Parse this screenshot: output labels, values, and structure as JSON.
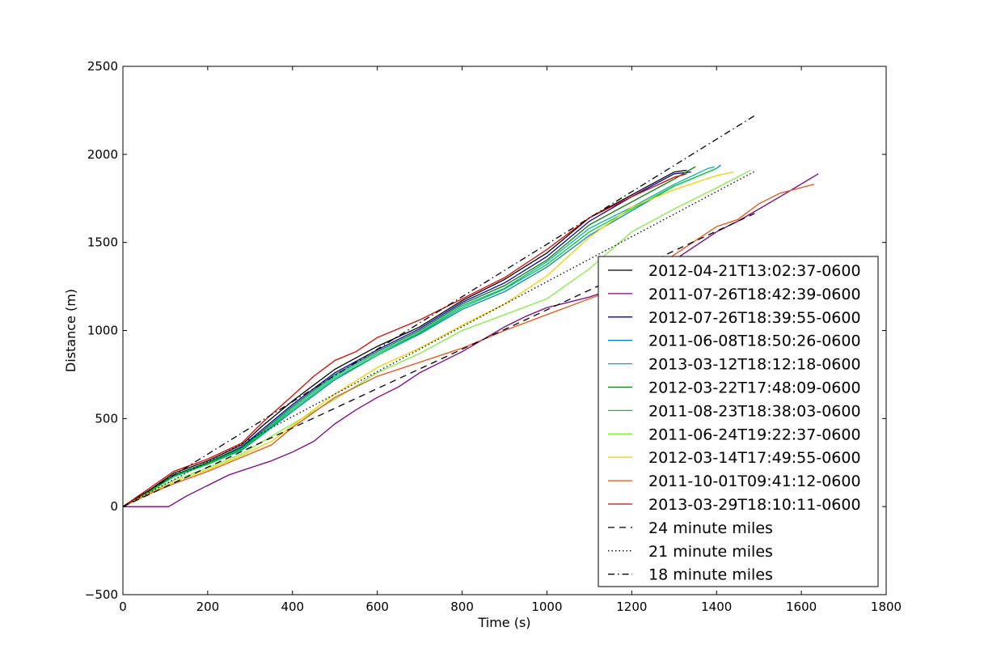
{
  "chart_data": {
    "type": "line",
    "title": "",
    "xlabel": "Time (s)",
    "ylabel": "Distance (m)",
    "xlim": [
      0,
      1800
    ],
    "ylim": [
      -500,
      2500
    ],
    "xticks": [
      0,
      200,
      400,
      600,
      800,
      1000,
      1200,
      1400,
      1600,
      1800
    ],
    "yticks": [
      -500,
      0,
      500,
      1000,
      1500,
      2000,
      2500
    ],
    "grid": false,
    "legend_position": "lower-right",
    "series": [
      {
        "name": "2012-04-21T13:02:37-0600",
        "color": "#000000",
        "style": "solid",
        "points": [
          [
            0,
            0
          ],
          [
            60,
            90
          ],
          [
            120,
            190
          ],
          [
            200,
            260
          ],
          [
            280,
            350
          ],
          [
            330,
            460
          ],
          [
            400,
            600
          ],
          [
            500,
            780
          ],
          [
            600,
            910
          ],
          [
            700,
            1020
          ],
          [
            800,
            1170
          ],
          [
            900,
            1290
          ],
          [
            1000,
            1440
          ],
          [
            1100,
            1640
          ],
          [
            1200,
            1770
          ],
          [
            1300,
            1900
          ],
          [
            1330,
            1910
          ]
        ]
      },
      {
        "name": "2011-07-26T18:42:39-0600",
        "color": "#800080",
        "style": "solid",
        "points": [
          [
            0,
            0
          ],
          [
            108,
            0
          ],
          [
            150,
            60
          ],
          [
            200,
            120
          ],
          [
            250,
            180
          ],
          [
            300,
            220
          ],
          [
            350,
            260
          ],
          [
            400,
            310
          ],
          [
            450,
            370
          ],
          [
            500,
            470
          ],
          [
            550,
            550
          ],
          [
            600,
            620
          ],
          [
            650,
            680
          ],
          [
            700,
            760
          ],
          [
            750,
            820
          ],
          [
            800,
            880
          ],
          [
            850,
            950
          ],
          [
            900,
            1020
          ],
          [
            950,
            1080
          ],
          [
            1000,
            1130
          ],
          [
            1100,
            1190
          ],
          [
            1200,
            1270
          ],
          [
            1300,
            1400
          ],
          [
            1400,
            1560
          ],
          [
            1450,
            1620
          ],
          [
            1500,
            1690
          ],
          [
            1550,
            1760
          ],
          [
            1640,
            1890
          ]
        ]
      },
      {
        "name": "2012-07-26T18:39:55-0600",
        "color": "#0000b0",
        "style": "solid",
        "points": [
          [
            0,
            0
          ],
          [
            60,
            85
          ],
          [
            120,
            180
          ],
          [
            200,
            250
          ],
          [
            280,
            340
          ],
          [
            330,
            440
          ],
          [
            400,
            580
          ],
          [
            500,
            760
          ],
          [
            600,
            890
          ],
          [
            700,
            1010
          ],
          [
            800,
            1160
          ],
          [
            900,
            1270
          ],
          [
            1000,
            1420
          ],
          [
            1100,
            1620
          ],
          [
            1200,
            1760
          ],
          [
            1300,
            1890
          ],
          [
            1340,
            1900
          ]
        ]
      },
      {
        "name": "2011-06-08T18:50:26-0600",
        "color": "#0080d0",
        "style": "solid",
        "points": [
          [
            0,
            0
          ],
          [
            60,
            80
          ],
          [
            120,
            170
          ],
          [
            200,
            240
          ],
          [
            280,
            320
          ],
          [
            330,
            410
          ],
          [
            400,
            540
          ],
          [
            500,
            720
          ],
          [
            600,
            860
          ],
          [
            700,
            980
          ],
          [
            800,
            1120
          ],
          [
            900,
            1220
          ],
          [
            1000,
            1360
          ],
          [
            1100,
            1540
          ],
          [
            1200,
            1680
          ],
          [
            1300,
            1820
          ],
          [
            1400,
            1920
          ],
          [
            1410,
            1940
          ]
        ]
      },
      {
        "name": "2013-03-12T18:12:18-0600",
        "color": "#00b0b0",
        "style": "solid",
        "points": [
          [
            0,
            0
          ],
          [
            60,
            82
          ],
          [
            120,
            175
          ],
          [
            200,
            245
          ],
          [
            280,
            330
          ],
          [
            330,
            420
          ],
          [
            400,
            560
          ],
          [
            500,
            740
          ],
          [
            600,
            870
          ],
          [
            700,
            990
          ],
          [
            800,
            1140
          ],
          [
            900,
            1240
          ],
          [
            1000,
            1390
          ],
          [
            1100,
            1580
          ],
          [
            1200,
            1700
          ],
          [
            1300,
            1830
          ],
          [
            1380,
            1920
          ],
          [
            1395,
            1930
          ]
        ]
      },
      {
        "name": "2012-03-22T17:48:09-0600",
        "color": "#008000",
        "style": "solid",
        "points": [
          [
            0,
            0
          ],
          [
            60,
            85
          ],
          [
            120,
            178
          ],
          [
            200,
            248
          ],
          [
            280,
            335
          ],
          [
            330,
            430
          ],
          [
            400,
            570
          ],
          [
            500,
            750
          ],
          [
            600,
            880
          ],
          [
            700,
            1000
          ],
          [
            800,
            1150
          ],
          [
            900,
            1255
          ],
          [
            1000,
            1400
          ],
          [
            1100,
            1600
          ],
          [
            1200,
            1730
          ],
          [
            1300,
            1860
          ],
          [
            1350,
            1930
          ]
        ]
      },
      {
        "name": "2011-08-23T18:38:03-0600",
        "color": "#00d020",
        "style": "solid",
        "points": [
          [
            0,
            0
          ],
          [
            60,
            80
          ],
          [
            120,
            172
          ],
          [
            200,
            242
          ],
          [
            280,
            325
          ],
          [
            330,
            415
          ],
          [
            400,
            550
          ],
          [
            500,
            730
          ],
          [
            600,
            860
          ],
          [
            700,
            985
          ],
          [
            800,
            1130
          ],
          [
            900,
            1235
          ],
          [
            1000,
            1375
          ],
          [
            1100,
            1560
          ],
          [
            1200,
            1690
          ],
          [
            1300,
            1820
          ],
          [
            1400,
            1920
          ]
        ]
      },
      {
        "name": "2011-06-24T19:22:37-0600",
        "color": "#80f040",
        "style": "solid",
        "points": [
          [
            0,
            0
          ],
          [
            60,
            75
          ],
          [
            120,
            150
          ],
          [
            200,
            220
          ],
          [
            280,
            300
          ],
          [
            330,
            370
          ],
          [
            400,
            470
          ],
          [
            500,
            610
          ],
          [
            600,
            760
          ],
          [
            700,
            870
          ],
          [
            800,
            1000
          ],
          [
            900,
            1090
          ],
          [
            1000,
            1180
          ],
          [
            1100,
            1350
          ],
          [
            1200,
            1560
          ],
          [
            1300,
            1690
          ],
          [
            1400,
            1810
          ],
          [
            1480,
            1910
          ]
        ]
      },
      {
        "name": "2012-03-14T17:49:55-0600",
        "color": "#f0d000",
        "style": "solid",
        "points": [
          [
            0,
            0
          ],
          [
            60,
            75
          ],
          [
            120,
            140
          ],
          [
            200,
            210
          ],
          [
            280,
            290
          ],
          [
            350,
            370
          ],
          [
            400,
            460
          ],
          [
            500,
            640
          ],
          [
            600,
            790
          ],
          [
            700,
            900
          ],
          [
            800,
            1030
          ],
          [
            900,
            1150
          ],
          [
            1000,
            1310
          ],
          [
            1100,
            1530
          ],
          [
            1200,
            1700
          ],
          [
            1300,
            1800
          ],
          [
            1400,
            1880
          ],
          [
            1440,
            1900
          ]
        ]
      },
      {
        "name": "2011-10-01T09:41:12-0600",
        "color": "#f05010",
        "style": "solid",
        "points": [
          [
            0,
            0
          ],
          [
            60,
            70
          ],
          [
            120,
            130
          ],
          [
            200,
            200
          ],
          [
            280,
            280
          ],
          [
            350,
            350
          ],
          [
            400,
            450
          ],
          [
            500,
            620
          ],
          [
            600,
            740
          ],
          [
            700,
            820
          ],
          [
            800,
            900
          ],
          [
            900,
            1000
          ],
          [
            1000,
            1090
          ],
          [
            1100,
            1180
          ],
          [
            1200,
            1270
          ],
          [
            1300,
            1430
          ],
          [
            1400,
            1590
          ],
          [
            1450,
            1630
          ],
          [
            1500,
            1720
          ],
          [
            1550,
            1780
          ],
          [
            1630,
            1830
          ]
        ]
      },
      {
        "name": "2013-03-29T18:10:11-0600",
        "color": "#e00000",
        "style": "solid",
        "points": [
          [
            0,
            0
          ],
          [
            60,
            100
          ],
          [
            120,
            200
          ],
          [
            200,
            270
          ],
          [
            280,
            360
          ],
          [
            330,
            480
          ],
          [
            400,
            630
          ],
          [
            450,
            740
          ],
          [
            500,
            830
          ],
          [
            550,
            880
          ],
          [
            600,
            960
          ],
          [
            700,
            1060
          ],
          [
            800,
            1180
          ],
          [
            900,
            1300
          ],
          [
            1000,
            1460
          ],
          [
            1100,
            1640
          ],
          [
            1200,
            1760
          ],
          [
            1300,
            1870
          ],
          [
            1330,
            1890
          ]
        ]
      },
      {
        "name": "24 minute miles",
        "color": "#000000",
        "style": "dashed",
        "points": [
          [
            0,
            0
          ],
          [
            1490,
            1665
          ]
        ]
      },
      {
        "name": "21 minute miles",
        "color": "#000000",
        "style": "dotted",
        "points": [
          [
            0,
            0
          ],
          [
            1490,
            1903
          ]
        ]
      },
      {
        "name": "18 minute miles",
        "color": "#000000",
        "style": "dashdot",
        "points": [
          [
            0,
            0
          ],
          [
            1490,
            2220
          ]
        ]
      }
    ]
  }
}
